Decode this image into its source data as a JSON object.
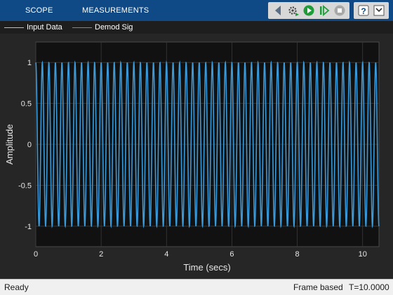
{
  "toolbar": {
    "tabs": [
      {
        "label": "SCOPE",
        "icon": "none"
      },
      {
        "label": "MEASUREMENTS",
        "icon": "none"
      }
    ],
    "buttons": [
      {
        "name": "back-arrow-icon"
      },
      {
        "name": "gear-run-icon"
      },
      {
        "name": "run-icon"
      },
      {
        "name": "step-forward-icon"
      },
      {
        "name": "stop-icon"
      },
      {
        "name": "help-icon"
      },
      {
        "name": "expand-icon"
      }
    ]
  },
  "legend": [
    {
      "label": "Input Data",
      "color": "#e8c23a"
    },
    {
      "label": "Demod Sig",
      "color": "#3a9ad9"
    }
  ],
  "chart_data": {
    "type": "line",
    "xlabel": "Time (secs)",
    "ylabel": "Amplitude",
    "xlim": [
      0,
      10.5
    ],
    "ylim": [
      -1.25,
      1.25
    ],
    "xticks": [
      "0",
      "2",
      "4",
      "6",
      "8",
      "10"
    ],
    "yticks": [
      "1",
      "0.5",
      "0",
      "-0.5",
      "-1"
    ],
    "grid": true,
    "series": [
      {
        "name": "Input Data",
        "color": "#e8c23a",
        "amplitude": 1,
        "frequency_hz": 5,
        "visible": false
      },
      {
        "name": "Demod Sig",
        "color": "#3a9ad9",
        "amplitude": 1,
        "frequency_hz": 5,
        "visible": true
      }
    ]
  },
  "status": {
    "left": "Ready",
    "mode": "Frame based",
    "time": "T=10.0000"
  }
}
